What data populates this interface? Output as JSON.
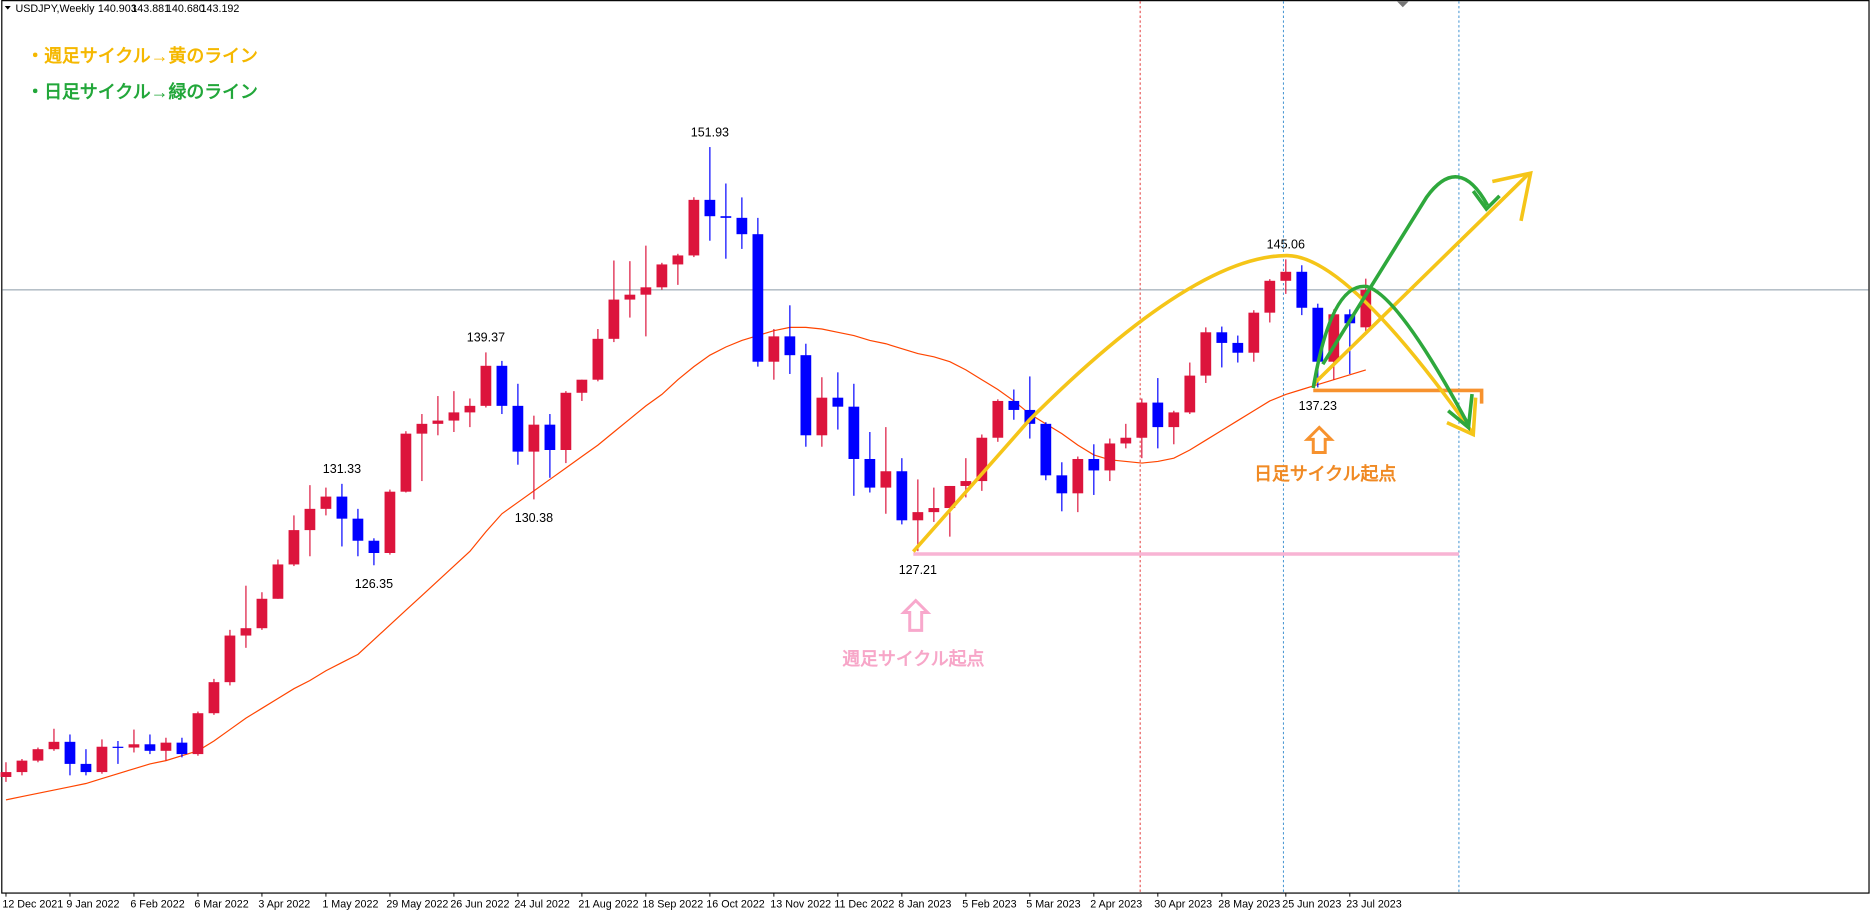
{
  "chart_data": {
    "type": "candlestick",
    "header": {
      "symbol": "USDJPY,Weekly",
      "ohlc": [
        "140.903",
        "143.881",
        "140.680",
        "143.192"
      ]
    },
    "categories": [
      "12 Dec 2021",
      null,
      null,
      null,
      "9 Jan 2022",
      null,
      null,
      null,
      "6 Feb 2022",
      null,
      null,
      null,
      "6 Mar 2022",
      null,
      null,
      null,
      "3 Apr 2022",
      null,
      null,
      null,
      "1 May 2022",
      null,
      null,
      null,
      "29 May 2022",
      null,
      null,
      null,
      "26 Jun 2022",
      null,
      null,
      null,
      "24 Jul 2022",
      null,
      null,
      null,
      "21 Aug 2022",
      null,
      null,
      null,
      "18 Sep 2022",
      null,
      null,
      null,
      "16 Oct 2022",
      null,
      null,
      null,
      "13 Nov 2022",
      null,
      null,
      null,
      "11 Dec 2022",
      null,
      null,
      null,
      "8 Jan 2023",
      null,
      null,
      null,
      "5 Feb 2023",
      null,
      null,
      null,
      "5 Mar 2023",
      null,
      null,
      null,
      "2 Apr 2023",
      null,
      null,
      null,
      "30 Apr 2023",
      null,
      null,
      null,
      "28 May 2023",
      null,
      null,
      null,
      "25 Jun 2023",
      null,
      null,
      null,
      "23 Jul 2023",
      null
    ],
    "open": [
      113.4,
      113.7,
      114.4,
      115.1,
      115.55,
      114.2,
      113.7,
      115.25,
      115.2,
      115.4,
      115.0,
      115.5,
      114.8,
      117.3,
      119.2,
      122.05,
      122.5,
      124.3,
      126.4,
      128.5,
      129.8,
      130.55,
      129.2,
      127.85,
      127.1,
      130.85,
      134.4,
      135.0,
      135.2,
      135.7,
      136.1,
      138.55,
      136.1,
      133.3,
      134.95,
      133.4,
      136.9,
      137.7,
      140.2,
      142.6,
      142.9,
      143.35,
      144.75,
      145.3,
      148.7,
      147.7,
      147.6,
      146.6,
      138.8,
      140.35,
      139.2,
      134.3,
      136.6,
      136.05,
      132.85,
      131.1,
      132.1,
      129.1,
      129.6,
      129.85,
      131.2,
      131.5,
      134.15,
      136.4,
      135.85,
      135.0,
      131.85,
      130.75,
      132.85,
      132.15,
      133.8,
      134.15,
      136.3,
      134.8,
      135.7,
      137.95,
      140.6,
      139.95,
      139.35,
      141.8,
      143.75,
      144.3,
      142.1,
      138.8,
      141.7,
      140.903
    ],
    "high": [
      114.3,
      114.5,
      115.2,
      116.35,
      116.0,
      115.1,
      115.7,
      115.6,
      116.3,
      116.0,
      115.8,
      115.8,
      117.4,
      119.4,
      122.4,
      125.1,
      124.7,
      126.7,
      129.4,
      131.25,
      131.1,
      131.33,
      129.8,
      128.0,
      130.98,
      134.55,
      135.6,
      136.7,
      137.0,
      136.55,
      139.37,
      138.85,
      137.45,
      135.5,
      135.6,
      137.0,
      137.7,
      140.8,
      144.99,
      144.95,
      145.9,
      144.85,
      145.4,
      148.86,
      151.93,
      149.7,
      148.85,
      147.6,
      140.8,
      142.25,
      139.9,
      137.85,
      138.15,
      137.45,
      134.5,
      134.8,
      132.9,
      131.6,
      131.1,
      131.2,
      132.9,
      134.35,
      136.5,
      137.1,
      137.9,
      135.1,
      132.65,
      133.0,
      133.75,
      134.1,
      135.0,
      136.55,
      137.8,
      135.8,
      138.75,
      140.9,
      140.95,
      140.4,
      141.95,
      143.85,
      145.06,
      144.7,
      142.35,
      142.0,
      142.0,
      143.881
    ],
    "low": [
      113.1,
      113.5,
      114.3,
      115.0,
      113.5,
      113.5,
      113.6,
      114.2,
      114.9,
      114.8,
      114.4,
      114.6,
      114.7,
      117.2,
      119.0,
      121.3,
      122.4,
      124.3,
      126.3,
      126.9,
      129.4,
      127.5,
      126.9,
      126.35,
      127.0,
      130.8,
      131.5,
      134.3,
      134.5,
      134.8,
      136.0,
      135.6,
      132.5,
      130.38,
      131.7,
      132.6,
      136.4,
      137.6,
      140.0,
      141.5,
      140.35,
      143.2,
      143.5,
      145.2,
      146.2,
      145.1,
      145.7,
      138.5,
      137.7,
      138.05,
      133.6,
      133.6,
      134.65,
      130.6,
      130.8,
      129.5,
      128.85,
      127.21,
      129.0,
      128.1,
      130.5,
      130.9,
      133.9,
      135.25,
      134.1,
      131.55,
      129.65,
      129.6,
      130.65,
      131.5,
      133.5,
      132.9,
      133.5,
      133.75,
      135.6,
      137.5,
      138.45,
      138.75,
      138.8,
      141.2,
      142.95,
      141.65,
      137.23,
      137.7,
      138.05,
      140.68
    ],
    "close": [
      113.7,
      114.4,
      115.1,
      115.55,
      114.2,
      113.7,
      115.25,
      115.2,
      115.4,
      115.0,
      115.5,
      114.8,
      117.3,
      119.2,
      122.05,
      122.5,
      124.3,
      126.4,
      128.5,
      129.8,
      130.55,
      129.2,
      127.85,
      127.1,
      130.85,
      134.4,
      135.0,
      135.2,
      135.7,
      136.1,
      138.55,
      136.1,
      133.3,
      134.95,
      133.4,
      136.9,
      137.7,
      140.2,
      142.6,
      142.9,
      143.35,
      144.75,
      145.3,
      148.7,
      147.7,
      147.6,
      146.6,
      138.8,
      140.35,
      139.2,
      134.3,
      136.6,
      136.05,
      132.85,
      131.1,
      132.1,
      129.1,
      129.6,
      129.85,
      131.2,
      131.5,
      134.15,
      136.4,
      135.85,
      135.0,
      131.85,
      130.75,
      132.85,
      132.15,
      133.8,
      134.15,
      136.3,
      134.8,
      135.7,
      137.95,
      140.6,
      139.95,
      139.35,
      141.8,
      143.75,
      144.3,
      142.1,
      138.8,
      141.7,
      141.15,
      143.192
    ],
    "up_color": "#dc143c",
    "down_color": "#0000ff",
    "ma": {
      "color": "#ff4500",
      "values": [
        112.0,
        112.2,
        112.4,
        112.6,
        112.8,
        113.0,
        113.3,
        113.6,
        113.9,
        114.2,
        114.4,
        114.7,
        115.0,
        115.6,
        116.3,
        117.0,
        117.6,
        118.2,
        118.8,
        119.3,
        119.9,
        120.4,
        120.9,
        121.8,
        122.7,
        123.6,
        124.5,
        125.4,
        126.3,
        127.2,
        128.4,
        129.5,
        130.2,
        130.9,
        131.6,
        132.3,
        133.0,
        133.7,
        134.5,
        135.3,
        136.1,
        136.8,
        137.7,
        138.5,
        139.2,
        139.7,
        140.1,
        140.4,
        140.7,
        140.9,
        140.9,
        140.8,
        140.6,
        140.4,
        140.1,
        139.9,
        139.6,
        139.3,
        139.1,
        138.8,
        138.3,
        137.7,
        137.1,
        136.4,
        135.6,
        135.0,
        134.4,
        133.7,
        133.1,
        132.8,
        132.7,
        132.6,
        132.7,
        132.9,
        133.4,
        134.0,
        134.6,
        135.2,
        135.8,
        136.4,
        136.8,
        137.1,
        137.4,
        137.7,
        138.0,
        138.3
      ]
    },
    "price_line": true,
    "ylim": [
      106.3,
      159.9
    ],
    "extreme_labels": [
      {
        "label": "151.93",
        "candle": 44,
        "side": "high"
      },
      {
        "label": "139.37",
        "candle": 30,
        "side": "high"
      },
      {
        "label": "131.33",
        "candle": 21,
        "side": "high"
      },
      {
        "label": "130.38",
        "candle": 33,
        "side": "low"
      },
      {
        "label": "126.35",
        "candle": 23,
        "side": "low"
      },
      {
        "label": "127.21",
        "candle": 57,
        "side": "low"
      },
      {
        "label": "145.06",
        "candle": 80,
        "side": "high"
      },
      {
        "label": "137.23",
        "candle": 82,
        "side": "low"
      }
    ],
    "annotations": {
      "weekly_legend": "・週足サイクル→黄のライン",
      "daily_legend": "・日足サイクル→緑のライン",
      "weekly_start": "週足サイクル起点",
      "daily_start": "日足サイクル起点"
    }
  }
}
